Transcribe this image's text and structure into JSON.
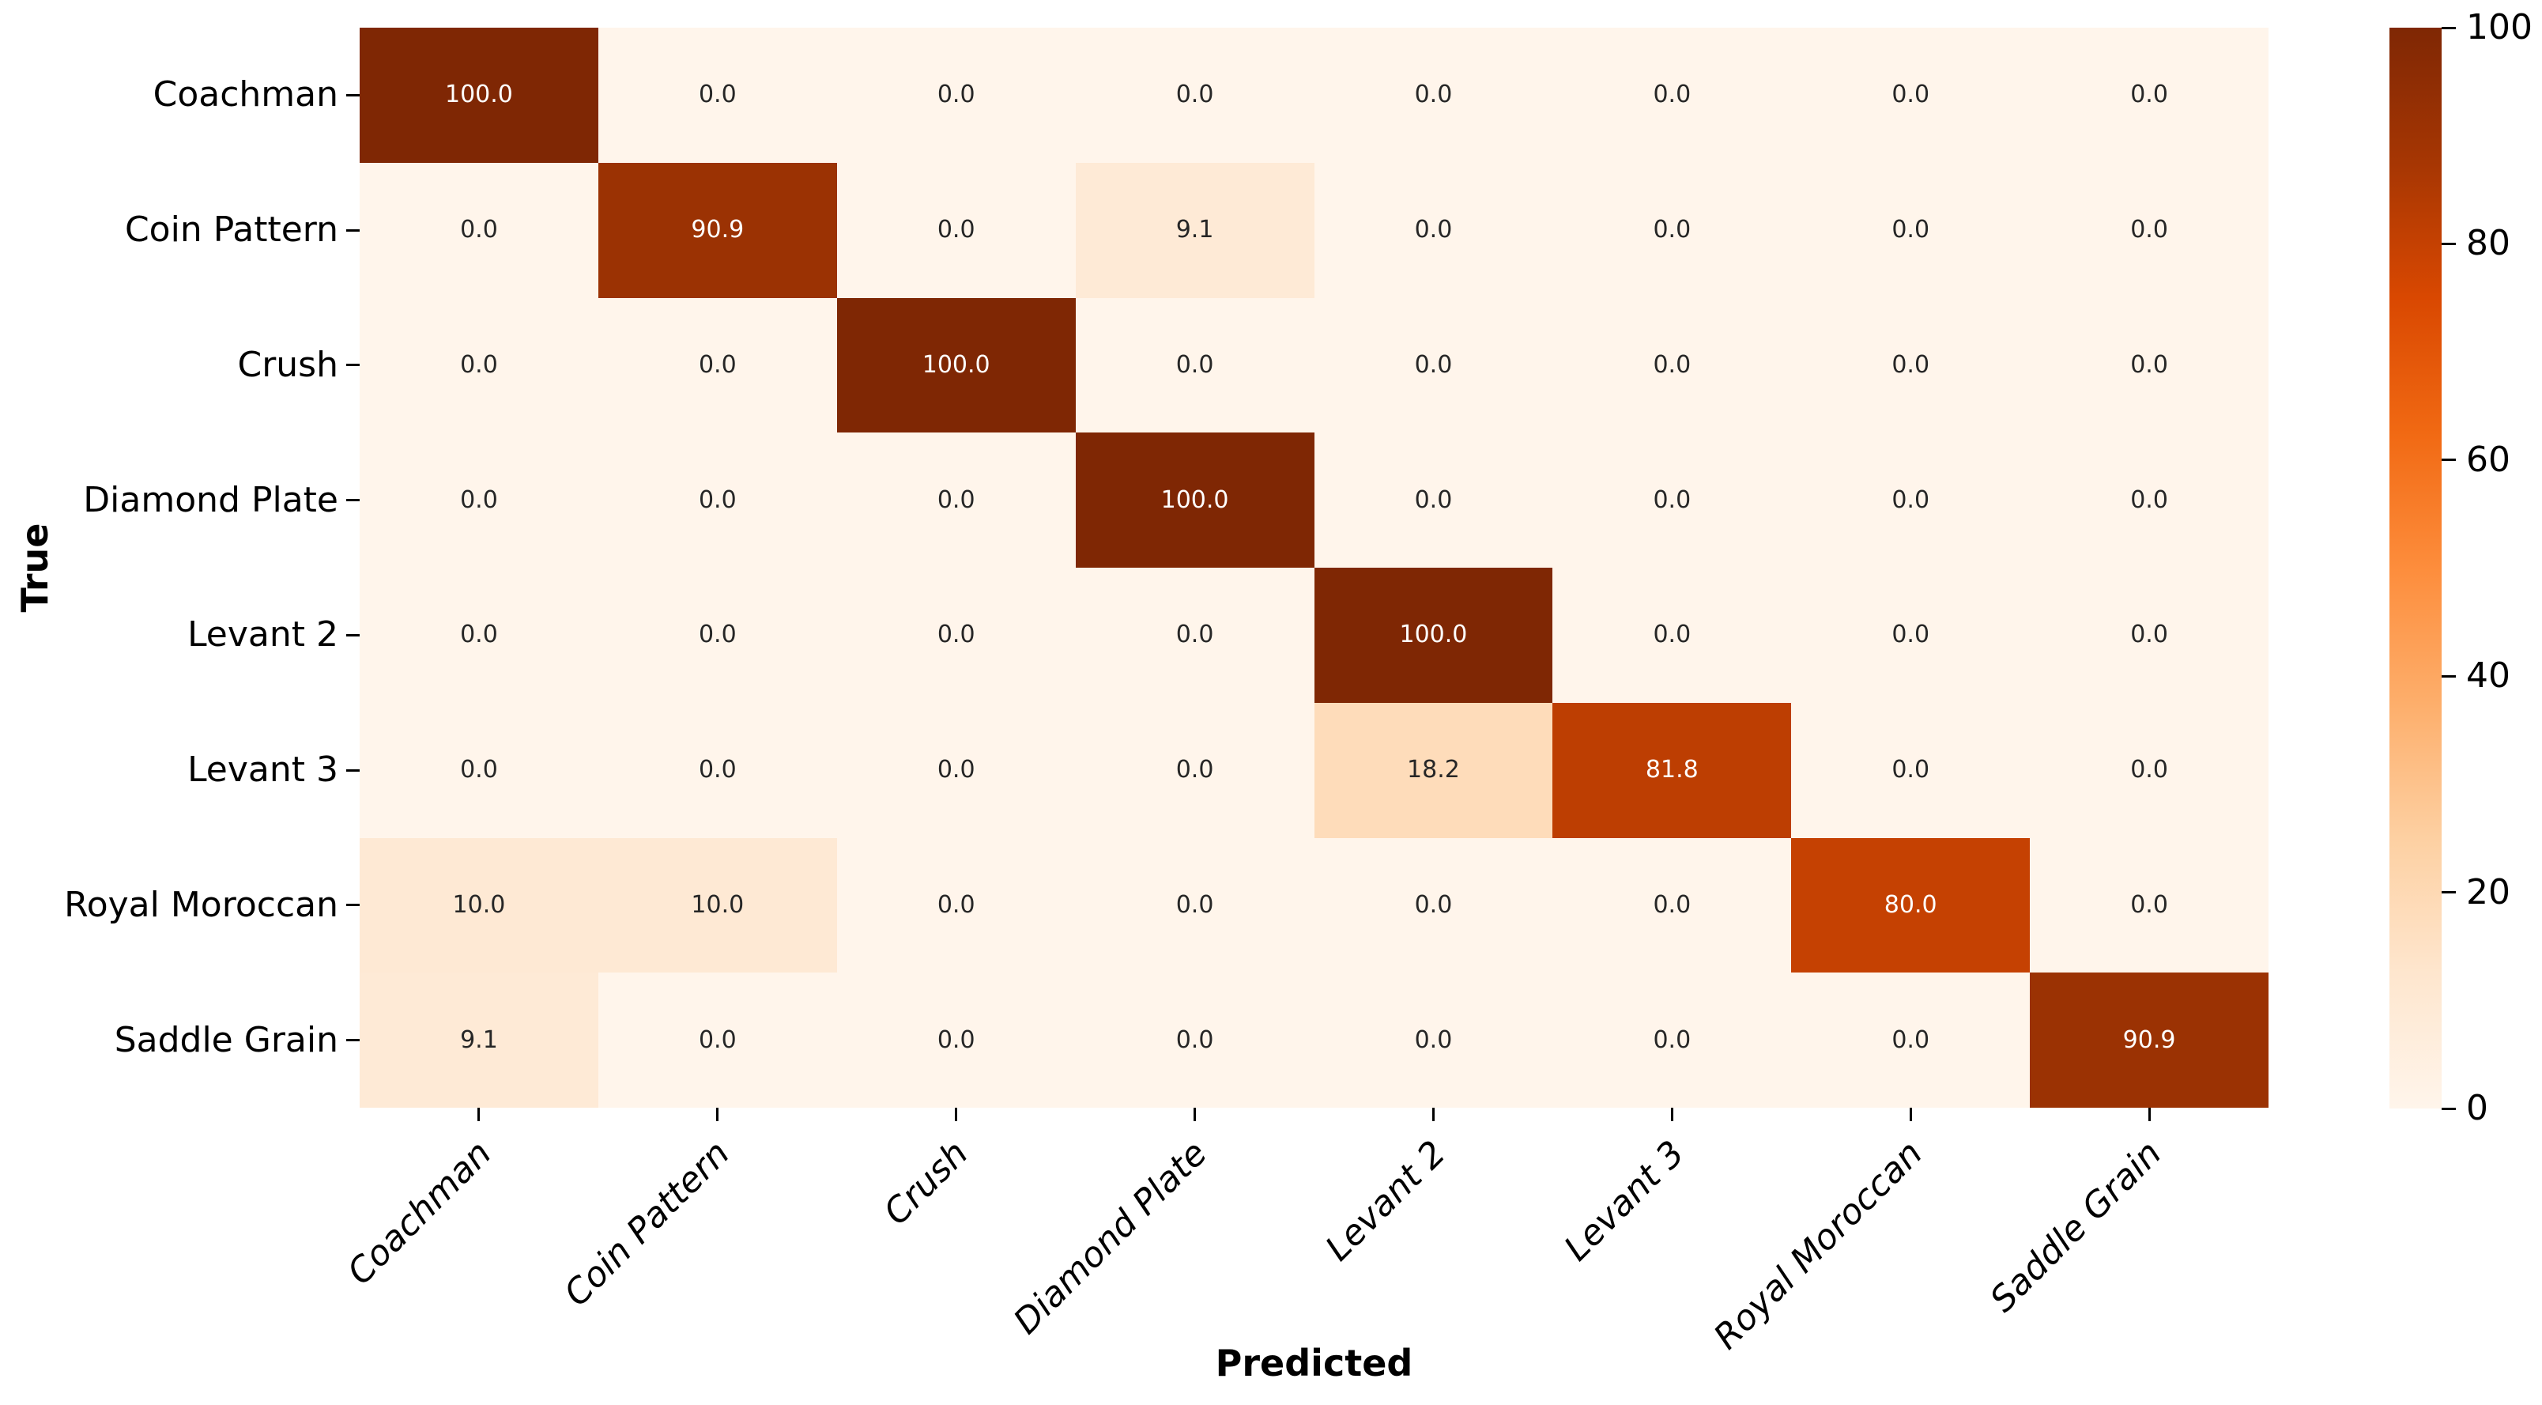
{
  "figure": {
    "background": "#ffffff"
  },
  "chart_data": {
    "type": "heatmap",
    "title": "",
    "xlabel": "Predicted",
    "ylabel": "True",
    "x_categories": [
      "Coachman",
      "Coin Pattern",
      "Crush",
      "Diamond Plate",
      "Levant 2",
      "Levant 3",
      "Royal Moroccan",
      "Saddle Grain"
    ],
    "y_categories": [
      "Coachman",
      "Coin Pattern",
      "Crush",
      "Diamond Plate",
      "Levant 2",
      "Levant 3",
      "Royal Moroccan",
      "Saddle Grain"
    ],
    "series": [
      {
        "name": "Coachman",
        "values": [
          100.0,
          0.0,
          0.0,
          0.0,
          0.0,
          0.0,
          0.0,
          0.0
        ]
      },
      {
        "name": "Coin Pattern",
        "values": [
          0.0,
          90.9,
          0.0,
          9.1,
          0.0,
          0.0,
          0.0,
          0.0
        ]
      },
      {
        "name": "Crush",
        "values": [
          0.0,
          0.0,
          100.0,
          0.0,
          0.0,
          0.0,
          0.0,
          0.0
        ]
      },
      {
        "name": "Diamond Plate",
        "values": [
          0.0,
          0.0,
          0.0,
          100.0,
          0.0,
          0.0,
          0.0,
          0.0
        ]
      },
      {
        "name": "Levant 2",
        "values": [
          0.0,
          0.0,
          0.0,
          0.0,
          100.0,
          0.0,
          0.0,
          0.0
        ]
      },
      {
        "name": "Levant 3",
        "values": [
          0.0,
          0.0,
          0.0,
          0.0,
          18.2,
          81.8,
          0.0,
          0.0
        ]
      },
      {
        "name": "Royal Moroccan",
        "values": [
          10.0,
          10.0,
          0.0,
          0.0,
          0.0,
          0.0,
          80.0,
          0.0
        ]
      },
      {
        "name": "Saddle Grain",
        "values": [
          9.1,
          0.0,
          0.0,
          0.0,
          0.0,
          0.0,
          0.0,
          90.9
        ]
      }
    ],
    "value_decimals": 1,
    "vmin": 0,
    "vmax": 100,
    "grid": false,
    "legend_position": "right-colorbar",
    "colorbar_ticks": [
      "0",
      "20",
      "40",
      "60",
      "80",
      "100"
    ],
    "colormap": {
      "name": "Oranges",
      "stops": [
        {
          "pos": 0.0,
          "color": "#fff5eb"
        },
        {
          "pos": 0.125,
          "color": "#fee6ce"
        },
        {
          "pos": 0.25,
          "color": "#fdd0a2"
        },
        {
          "pos": 0.375,
          "color": "#fdae6b"
        },
        {
          "pos": 0.5,
          "color": "#fd8d3c"
        },
        {
          "pos": 0.625,
          "color": "#f16913"
        },
        {
          "pos": 0.75,
          "color": "#d94801"
        },
        {
          "pos": 0.875,
          "color": "#a63603"
        },
        {
          "pos": 1.0,
          "color": "#7f2704"
        }
      ]
    },
    "colors": {
      "annotation_on_light": "#262626",
      "annotation_on_dark": "#ffffff",
      "tick_mark": "#000000",
      "tick_label": "#000000",
      "axis_title": "#000000"
    }
  }
}
